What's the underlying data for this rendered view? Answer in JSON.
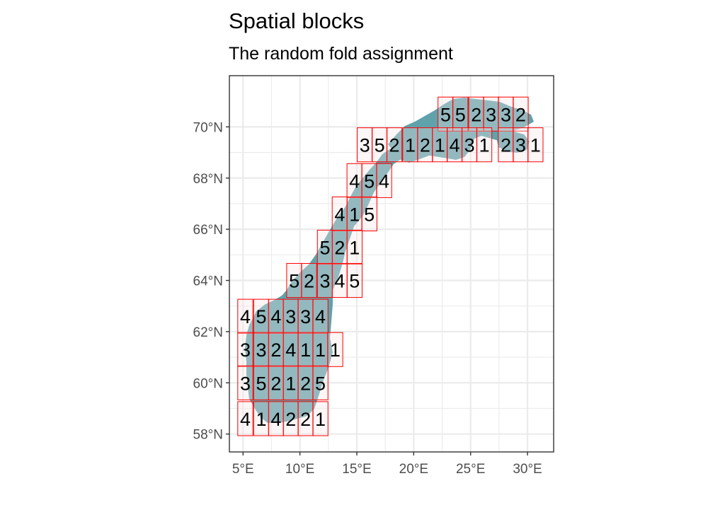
{
  "chart_data": {
    "type": "map",
    "title": "Spatial blocks",
    "subtitle": "The random fold assignment",
    "grid": true,
    "x_axis": {
      "range": [
        3.8,
        32.3
      ],
      "ticks": [
        5,
        10,
        15,
        20,
        25,
        30
      ],
      "tick_labels": [
        "5°E",
        "10°E",
        "15°E",
        "20°E",
        "25°E",
        "30°E"
      ]
    },
    "y_axis": {
      "range": [
        57.3,
        72.0
      ],
      "ticks": [
        58,
        60,
        62,
        64,
        66,
        68,
        70
      ],
      "tick_labels": [
        "58°N",
        "60°N",
        "62°N",
        "64°N",
        "66°N",
        "68°N",
        "70°N"
      ]
    },
    "colors": {
      "land": "#5fa2ab",
      "block_border": "#ff0000",
      "block_fill": "#f6e4e4",
      "grid": "#ebebeb",
      "panel_border": "#333333"
    },
    "blocks": [
      {
        "row": "70.5N",
        "folds": [
          {
            "lon": 22.8,
            "fold": 5
          },
          {
            "lon": 24.1,
            "fold": 5
          },
          {
            "lon": 25.5,
            "fold": 2
          },
          {
            "lon": 26.8,
            "fold": 3
          },
          {
            "lon": 28.1,
            "fold": 3
          },
          {
            "lon": 29.4,
            "fold": 2
          }
        ]
      },
      {
        "row": "69.3N",
        "folds": [
          {
            "lon": 15.7,
            "fold": 3
          },
          {
            "lon": 17.0,
            "fold": 5
          },
          {
            "lon": 18.3,
            "fold": 2
          },
          {
            "lon": 19.7,
            "fold": 1
          },
          {
            "lon": 21.0,
            "fold": 2
          },
          {
            "lon": 22.3,
            "fold": 1
          },
          {
            "lon": 23.6,
            "fold": 4
          },
          {
            "lon": 24.9,
            "fold": 3
          },
          {
            "lon": 26.2,
            "fold": 1
          },
          {
            "lon": 28.1,
            "fold": 2
          },
          {
            "lon": 29.4,
            "fold": 3
          },
          {
            "lon": 30.7,
            "fold": 1
          }
        ]
      },
      {
        "row": "67.9N",
        "folds": [
          {
            "lon": 14.8,
            "fold": 4
          },
          {
            "lon": 16.1,
            "fold": 5
          },
          {
            "lon": 17.4,
            "fold": 4
          }
        ]
      },
      {
        "row": "66.6N",
        "folds": [
          {
            "lon": 13.5,
            "fold": 4
          },
          {
            "lon": 14.8,
            "fold": 1
          },
          {
            "lon": 16.1,
            "fold": 5
          }
        ]
      },
      {
        "row": "65.3N",
        "folds": [
          {
            "lon": 12.2,
            "fold": 5
          },
          {
            "lon": 13.5,
            "fold": 2
          },
          {
            "lon": 14.8,
            "fold": 1
          }
        ]
      },
      {
        "row": "64.0N",
        "folds": [
          {
            "lon": 9.5,
            "fold": 5
          },
          {
            "lon": 10.8,
            "fold": 2
          },
          {
            "lon": 12.2,
            "fold": 3
          },
          {
            "lon": 13.5,
            "fold": 4
          },
          {
            "lon": 14.8,
            "fold": 5
          }
        ]
      },
      {
        "row": "62.6N",
        "folds": [
          {
            "lon": 5.2,
            "fold": 4
          },
          {
            "lon": 6.6,
            "fold": 5
          },
          {
            "lon": 7.9,
            "fold": 4
          },
          {
            "lon": 9.2,
            "fold": 3
          },
          {
            "lon": 10.5,
            "fold": 3
          },
          {
            "lon": 11.8,
            "fold": 4
          }
        ]
      },
      {
        "row": "61.3N",
        "folds": [
          {
            "lon": 5.2,
            "fold": 3
          },
          {
            "lon": 6.6,
            "fold": 3
          },
          {
            "lon": 7.9,
            "fold": 2
          },
          {
            "lon": 9.2,
            "fold": 4
          },
          {
            "lon": 10.5,
            "fold": 1
          },
          {
            "lon": 11.8,
            "fold": 1
          },
          {
            "lon": 13.1,
            "fold": 1
          }
        ]
      },
      {
        "row": "60.0N",
        "folds": [
          {
            "lon": 5.2,
            "fold": 3
          },
          {
            "lon": 6.6,
            "fold": 5
          },
          {
            "lon": 7.9,
            "fold": 2
          },
          {
            "lon": 9.2,
            "fold": 1
          },
          {
            "lon": 10.5,
            "fold": 2
          },
          {
            "lon": 11.8,
            "fold": 5
          }
        ]
      },
      {
        "row": "58.6N",
        "folds": [
          {
            "lon": 5.2,
            "fold": 4
          },
          {
            "lon": 6.6,
            "fold": 1
          },
          {
            "lon": 7.9,
            "fold": 4
          },
          {
            "lon": 9.2,
            "fold": 2
          },
          {
            "lon": 10.5,
            "fold": 2
          },
          {
            "lon": 11.8,
            "fold": 1
          }
        ]
      }
    ]
  }
}
